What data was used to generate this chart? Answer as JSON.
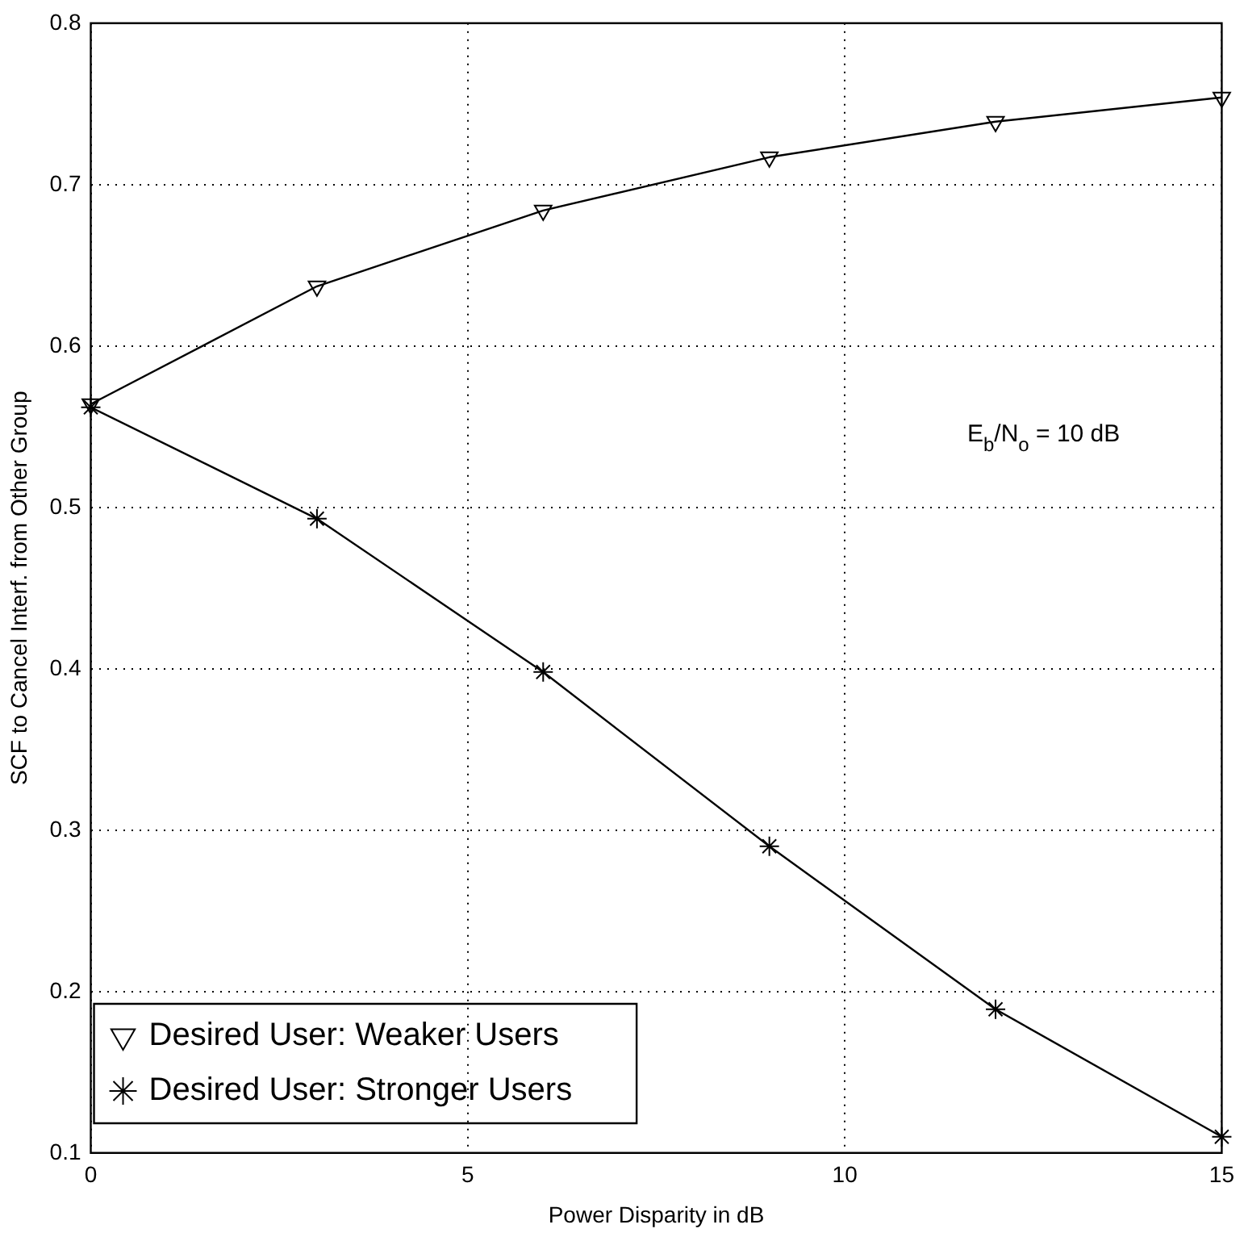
{
  "chart_data": {
    "type": "line",
    "xlabel": "Power Disparity in dB",
    "ylabel": "SCF to Cancel Interf. from Other Group",
    "x": [
      0,
      3,
      6,
      9,
      12,
      15
    ],
    "series": [
      {
        "name": "Desired User: Weaker Users",
        "color": "#000000",
        "marker": "triangle",
        "values": [
          0.564,
          0.637,
          0.684,
          0.717,
          0.739,
          0.754
        ]
      },
      {
        "name": "Desired User: Stronger Users",
        "color": "#000000",
        "marker": "cross",
        "values": [
          0.562,
          0.493,
          0.398,
          0.29,
          0.189,
          0.11
        ]
      }
    ],
    "xlim": [
      0,
      15
    ],
    "xticks": [
      0,
      5,
      10,
      15
    ],
    "ylim": [
      0.1,
      0.8
    ],
    "yticks": [
      0.1,
      0.2,
      0.3,
      0.4,
      0.5,
      0.6,
      0.7,
      0.8
    ],
    "grid": true,
    "legend": "bottom left",
    "line_style": "solid",
    "annotations": [
      "E$_{b}$/N$_{o}$ = 10 dB"
    ]
  }
}
